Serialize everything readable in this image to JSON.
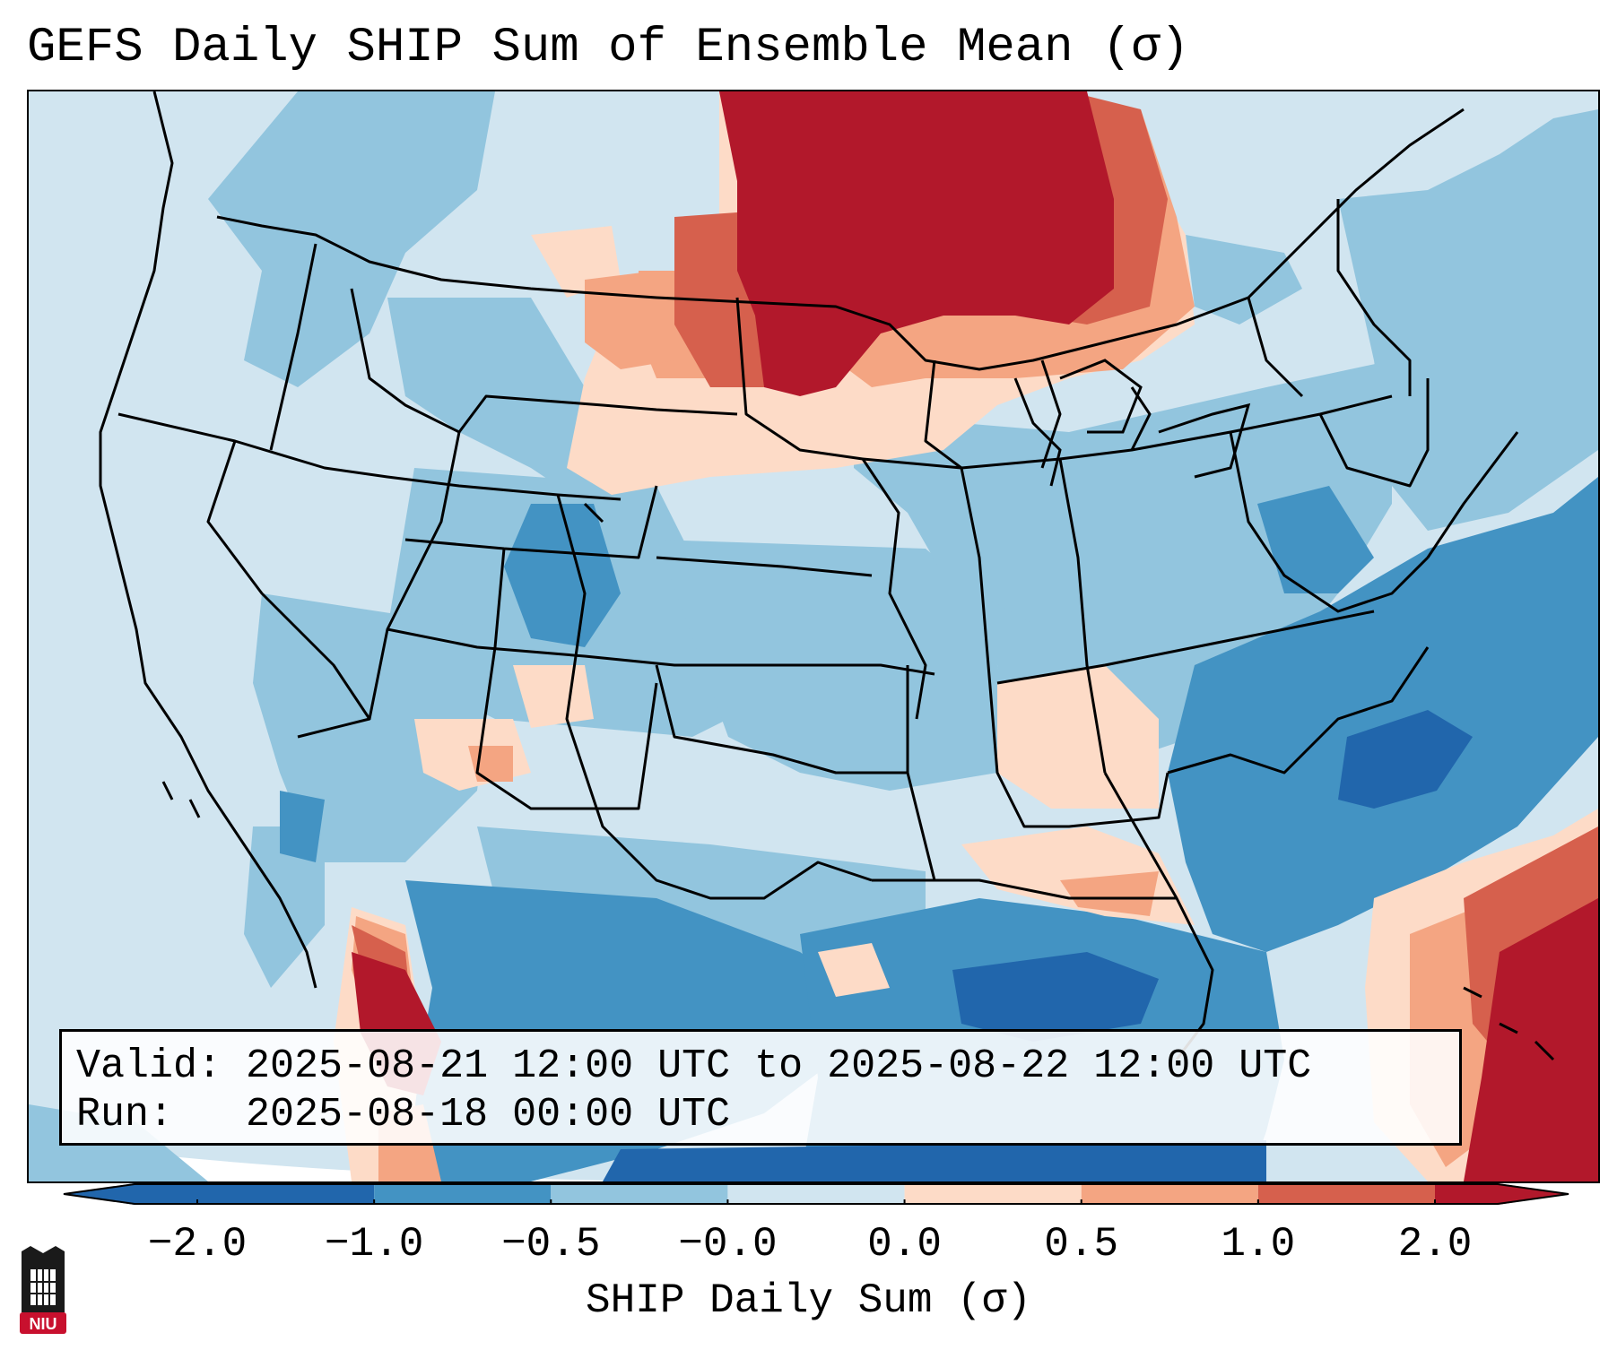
{
  "title": "GEFS Daily SHIP Sum of Ensemble Mean (σ)",
  "info": {
    "valid_label": "Valid:",
    "valid_value": "2025-08-21 12:00 UTC to 2025-08-22 12:00 UTC",
    "run_label": "Run:",
    "run_value": "2025-08-18 00:00 UTC"
  },
  "colorbar": {
    "title": "SHIP Daily Sum (σ)",
    "ticks": [
      "−2.0",
      "−1.0",
      "−0.5",
      "−0.0",
      "0.0",
      "0.5",
      "1.0",
      "2.0"
    ],
    "colors": [
      "#2166ac",
      "#4393c3",
      "#92c5de",
      "#d1e5f0",
      "#fddbc7",
      "#f4a582",
      "#d6604d",
      "#b2182b"
    ],
    "extend": "both"
  },
  "logo": {
    "text": "NIU",
    "color": "#c8102e"
  },
  "map": {
    "region": "Continental United States",
    "anomaly_regions": [
      {
        "name": "Upper Midwest / Great Lakes",
        "category": "strong positive"
      },
      {
        "name": "Northern Plains",
        "category": "moderate positive"
      },
      {
        "name": "Gulf of California / Sonora",
        "category": "strong positive"
      },
      {
        "name": "Western Atlantic (south-east corner)",
        "category": "strong positive"
      },
      {
        "name": "Colorado Rockies",
        "category": "moderate negative"
      },
      {
        "name": "Gulf of Mexico",
        "category": "moderate to strong negative"
      },
      {
        "name": "Carolinas offshore",
        "category": "strong negative"
      }
    ]
  }
}
